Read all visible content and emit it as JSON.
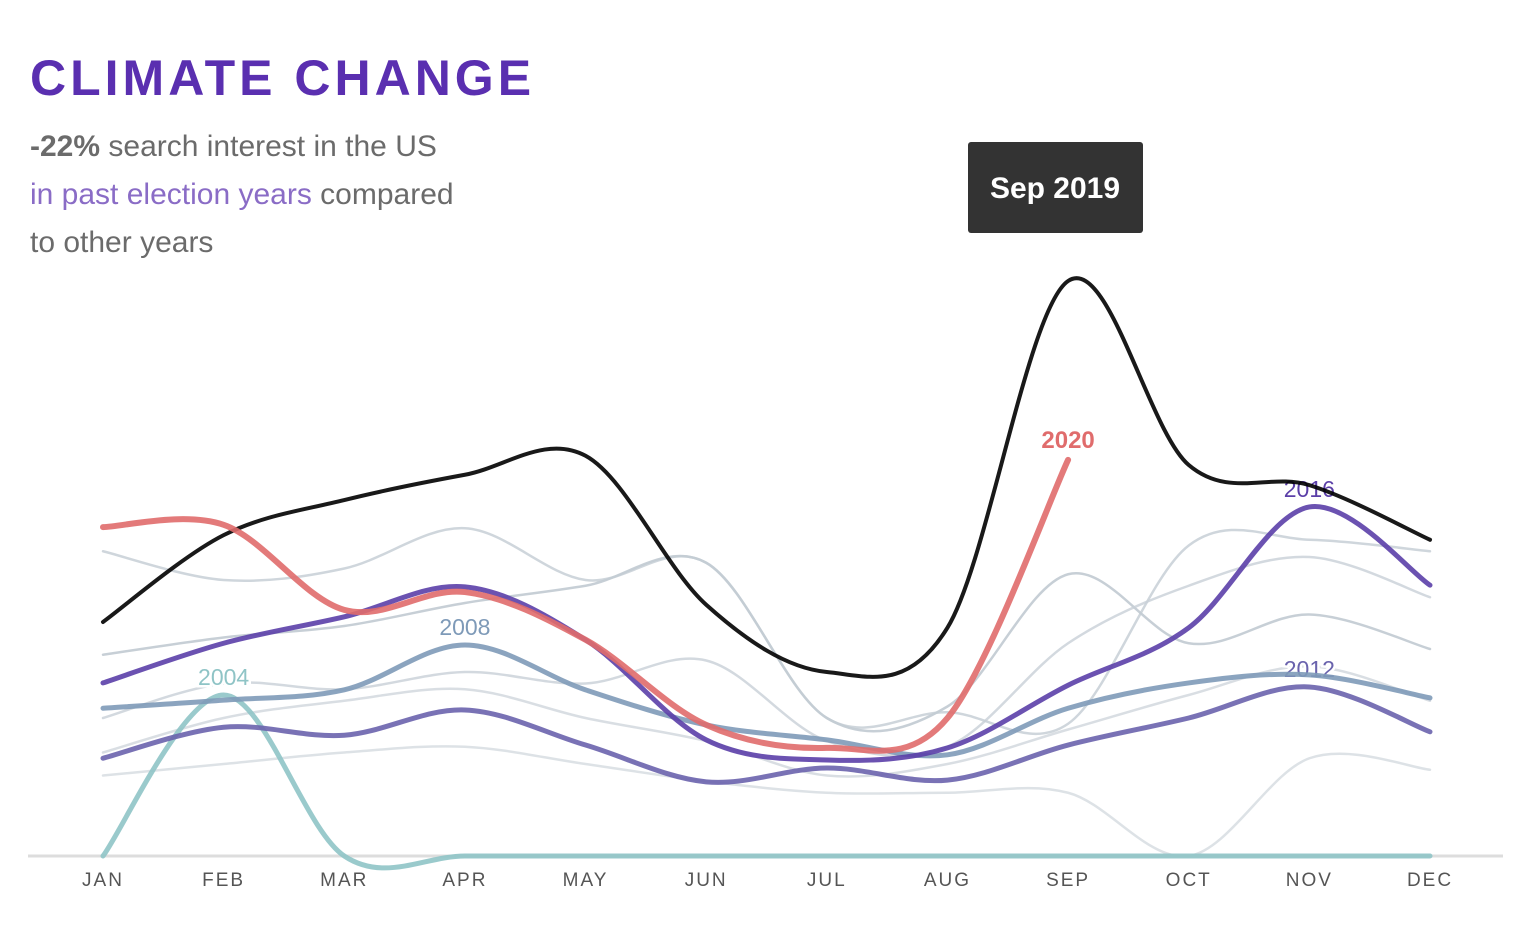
{
  "chart_data": {
    "type": "line",
    "title": "CLIMATE CHANGE",
    "subtitle": [
      {
        "text": "-22%",
        "style": "bold"
      },
      {
        "text": " search interest in the US"
      },
      {
        "text": "in past election years",
        "style": "accent"
      },
      {
        "text": " compared"
      },
      {
        "text": "to other years"
      }
    ],
    "annotation": "Sep 2019",
    "categories": [
      "JAN",
      "FEB",
      "MAR",
      "APR",
      "MAY",
      "JUN",
      "JUL",
      "AUG",
      "SEP",
      "OCT",
      "NOV",
      "DEC"
    ],
    "ylim": [
      0,
      100
    ],
    "series": [
      {
        "color": "#b9c3cc",
        "values": [
          35,
          38,
          40,
          44,
          47,
          51,
          24,
          26,
          49,
          37,
          42,
          36
        ]
      },
      {
        "color": "#c3ccd3",
        "values": [
          53,
          48,
          50,
          57,
          48,
          51,
          24,
          25,
          23,
          54,
          55,
          53
        ]
      },
      {
        "color": "#c8d0d7",
        "values": [
          24,
          30,
          29,
          32,
          30,
          34,
          20,
          19,
          37,
          47,
          52,
          45
        ]
      },
      {
        "color": "#cfd6dc",
        "values": [
          18,
          24,
          27,
          29,
          24,
          20,
          14,
          16,
          22,
          28,
          33,
          27
        ]
      },
      {
        "color": "#d5dbe0",
        "values": [
          14,
          16,
          18,
          19,
          16,
          13,
          11,
          11,
          11,
          0,
          17,
          15
        ]
      },
      {
        "name": "2004",
        "color": "#8fc4c6",
        "values": [
          0,
          28,
          0,
          0,
          0,
          0,
          0,
          0,
          0,
          0,
          0,
          0
        ]
      },
      {
        "name": "2012",
        "color": "#6a63ad",
        "values": [
          17,
          22.4,
          21,
          25.4,
          19.3,
          12.9,
          15.3,
          13.2,
          19.3,
          24,
          29.4,
          21.6
        ]
      },
      {
        "name": "2008",
        "color": "#7e9ab8",
        "values": [
          25.7,
          27.1,
          28.9,
          36.7,
          28.9,
          22.8,
          20.2,
          17.6,
          25.7,
          30.1,
          31.5,
          27.5
        ]
      },
      {
        "name": "2016",
        "color": "#5b3fa8",
        "values": [
          30.1,
          37,
          41.6,
          46.8,
          37.6,
          20.2,
          16.7,
          18.8,
          29.7,
          39.7,
          60.7,
          47.1
        ]
      },
      {
        "color": "#000000",
        "values": [
          40.7,
          55.8,
          61.9,
          66.3,
          69.6,
          43.7,
          32,
          39.7,
          100,
          68,
          64.5,
          55
        ]
      },
      {
        "name": "2020",
        "color": "#e06c6c",
        "values": [
          57.2,
          57.6,
          42.8,
          45.9,
          37.6,
          22.8,
          18.8,
          24,
          68.9,
          null,
          null,
          null
        ]
      }
    ]
  }
}
